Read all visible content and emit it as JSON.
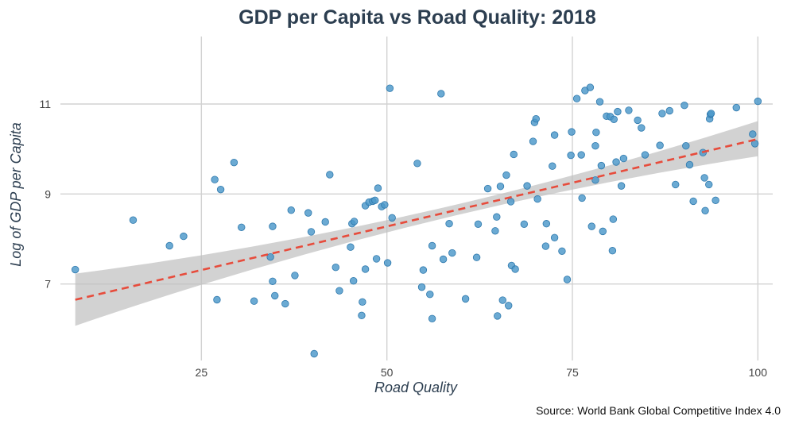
{
  "chart_data": {
    "type": "scatter",
    "title": "GDP per Capita vs Road Quality: 2018",
    "xlabel": "Road Quality",
    "ylabel": "Log of GDP per Capita",
    "caption": "Source: World Bank Global Competitive Index 4.0",
    "xlim": [
      6,
      102
    ],
    "ylim": [
      5.3,
      12.5
    ],
    "x_ticks": [
      25,
      50,
      75,
      100
    ],
    "x_tick_labels": [
      "25",
      "50",
      "75",
      "100"
    ],
    "y_ticks": [
      7,
      9,
      11
    ],
    "y_tick_labels": [
      "7",
      "9",
      "11"
    ],
    "grid": true,
    "legend": "none",
    "colors": {
      "points": "#4a97c9",
      "point_edge": "#2f79ad",
      "fit_line": "#e74c3c",
      "confidence_band": "#bfbfbf",
      "title": "#2c3e50"
    },
    "fit": {
      "method": "linear",
      "x_range": [
        8,
        100
      ],
      "y_at_start": 6.65,
      "y_at_end": 10.22,
      "band_at_start": [
        6.07,
        7.23
      ],
      "band_at_end": [
        9.84,
        10.62
      ]
    },
    "points": [
      [
        8,
        7.32
      ],
      [
        15.8,
        8.42
      ],
      [
        20.7,
        7.85
      ],
      [
        22.6,
        8.06
      ],
      [
        26.8,
        9.32
      ],
      [
        27.1,
        6.65
      ],
      [
        27.6,
        9.1
      ],
      [
        29.4,
        9.7
      ],
      [
        30.4,
        8.26
      ],
      [
        32.1,
        6.62
      ],
      [
        34.3,
        7.6
      ],
      [
        34.6,
        7.06
      ],
      [
        34.9,
        6.74
      ],
      [
        34.6,
        8.28
      ],
      [
        36.3,
        6.56
      ],
      [
        37.1,
        8.64
      ],
      [
        37.6,
        7.19
      ],
      [
        39.4,
        8.58
      ],
      [
        39.8,
        8.16
      ],
      [
        40.2,
        5.45
      ],
      [
        41.7,
        8.38
      ],
      [
        42.3,
        9.43
      ],
      [
        43.1,
        7.37
      ],
      [
        43.6,
        6.85
      ],
      [
        45.1,
        7.82
      ],
      [
        45.3,
        8.34
      ],
      [
        45.6,
        8.39
      ],
      [
        45.5,
        7.07
      ],
      [
        46.6,
        6.3
      ],
      [
        46.7,
        6.6
      ],
      [
        47.1,
        7.33
      ],
      [
        47.1,
        8.74
      ],
      [
        47.6,
        8.82
      ],
      [
        48.1,
        8.84
      ],
      [
        48.4,
        8.86
      ],
      [
        48.6,
        7.56
      ],
      [
        48.8,
        9.13
      ],
      [
        49.3,
        8.72
      ],
      [
        49.7,
        8.76
      ],
      [
        50.1,
        7.47
      ],
      [
        50.4,
        11.35
      ],
      [
        50.7,
        8.47
      ],
      [
        54.1,
        9.68
      ],
      [
        54.7,
        6.93
      ],
      [
        54.9,
        7.31
      ],
      [
        55.8,
        6.77
      ],
      [
        56.1,
        6.23
      ],
      [
        56.1,
        7.85
      ],
      [
        57.3,
        11.23
      ],
      [
        57.6,
        7.55
      ],
      [
        58.4,
        8.34
      ],
      [
        58.8,
        7.69
      ],
      [
        60.6,
        6.67
      ],
      [
        62.1,
        7.59
      ],
      [
        62.3,
        8.33
      ],
      [
        63.6,
        9.12
      ],
      [
        64.6,
        8.18
      ],
      [
        64.8,
        8.49
      ],
      [
        64.9,
        6.29
      ],
      [
        65.3,
        9.17
      ],
      [
        65.6,
        6.64
      ],
      [
        66.1,
        9.42
      ],
      [
        66.4,
        6.52
      ],
      [
        66.7,
        8.83
      ],
      [
        66.8,
        7.41
      ],
      [
        67.1,
        9.88
      ],
      [
        67.3,
        7.33
      ],
      [
        68.5,
        8.33
      ],
      [
        68.9,
        9.18
      ],
      [
        69.7,
        10.17
      ],
      [
        69.9,
        10.59
      ],
      [
        70.1,
        10.67
      ],
      [
        70.3,
        8.89
      ],
      [
        71.4,
        7.84
      ],
      [
        71.5,
        8.34
      ],
      [
        72.3,
        9.62
      ],
      [
        72.6,
        10.31
      ],
      [
        72.6,
        8.03
      ],
      [
        73.6,
        7.73
      ],
      [
        74.3,
        7.1
      ],
      [
        74.9,
        10.38
      ],
      [
        74.8,
        9.86
      ],
      [
        75.6,
        11.12
      ],
      [
        76.2,
        9.87
      ],
      [
        76.3,
        8.91
      ],
      [
        76.7,
        11.3
      ],
      [
        77.4,
        11.37
      ],
      [
        77.6,
        8.28
      ],
      [
        78.1,
        9.31
      ],
      [
        78.1,
        10.07
      ],
      [
        78.2,
        10.37
      ],
      [
        78.7,
        11.05
      ],
      [
        78.9,
        9.63
      ],
      [
        79.1,
        8.17
      ],
      [
        79.6,
        10.73
      ],
      [
        80.1,
        10.72
      ],
      [
        80.4,
        7.74
      ],
      [
        80.5,
        8.44
      ],
      [
        80.6,
        10.66
      ],
      [
        80.9,
        9.71
      ],
      [
        81.1,
        10.83
      ],
      [
        81.6,
        9.18
      ],
      [
        81.9,
        9.79
      ],
      [
        82.6,
        10.86
      ],
      [
        83.8,
        10.64
      ],
      [
        84.3,
        10.47
      ],
      [
        84.8,
        9.87
      ],
      [
        86.8,
        10.08
      ],
      [
        87.1,
        10.79
      ],
      [
        88.1,
        10.85
      ],
      [
        88.9,
        9.21
      ],
      [
        90.1,
        10.97
      ],
      [
        90.3,
        10.07
      ],
      [
        90.8,
        9.65
      ],
      [
        91.3,
        8.84
      ],
      [
        92.6,
        9.92
      ],
      [
        92.8,
        9.36
      ],
      [
        92.9,
        8.63
      ],
      [
        93.4,
        9.21
      ],
      [
        93.5,
        10.67
      ],
      [
        93.6,
        10.77
      ],
      [
        93.7,
        10.79
      ],
      [
        94.3,
        8.86
      ],
      [
        97.1,
        10.92
      ],
      [
        99.3,
        10.33
      ],
      [
        99.6,
        10.12
      ],
      [
        100,
        11.06
      ]
    ]
  }
}
